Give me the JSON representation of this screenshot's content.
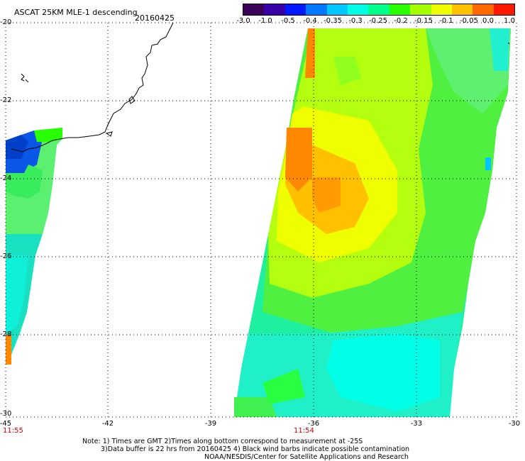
{
  "header": {
    "title": "ASCAT 25KM MLE-1 descending",
    "date": "20160425"
  },
  "colorbar": {
    "labels": [
      "-3.0",
      "-1.0",
      "-0.5",
      "-0.4",
      "-0.35",
      "-0.3",
      "-0.25",
      "-0.2",
      "-0.15",
      "-0.1",
      "-0.05",
      "0.0",
      "1.0"
    ],
    "colors": [
      "#3b0058",
      "#3a00a8",
      "#0018ff",
      "#0078ff",
      "#00c8ff",
      "#00ffe6",
      "#00ff8c",
      "#28ff00",
      "#a6ff00",
      "#f0ff00",
      "#ffc000",
      "#ff6a00",
      "#ff1800"
    ]
  },
  "axes": {
    "lat_labels": [
      "-20",
      "-22",
      "-24",
      "-26",
      "-28",
      "-30"
    ],
    "lon_labels": [
      "-45",
      "-42",
      "-39",
      "-36",
      "-33",
      "-30"
    ],
    "lat_range": [
      -30,
      -20
    ],
    "lon_range": [
      -45,
      -30
    ]
  },
  "times": {
    "left": "11:55",
    "middle": "11:54"
  },
  "notes": {
    "line1": "Note: 1) Times are GMT 2)Times along bottom correspond to measurement at -25S",
    "line2": "3)Data buffer is 22 hrs from 20160425 4) Black wind barbs indicate possible contamination",
    "line3": "NOAA/NESDIS/Center for Satellite Applications and Research"
  }
}
